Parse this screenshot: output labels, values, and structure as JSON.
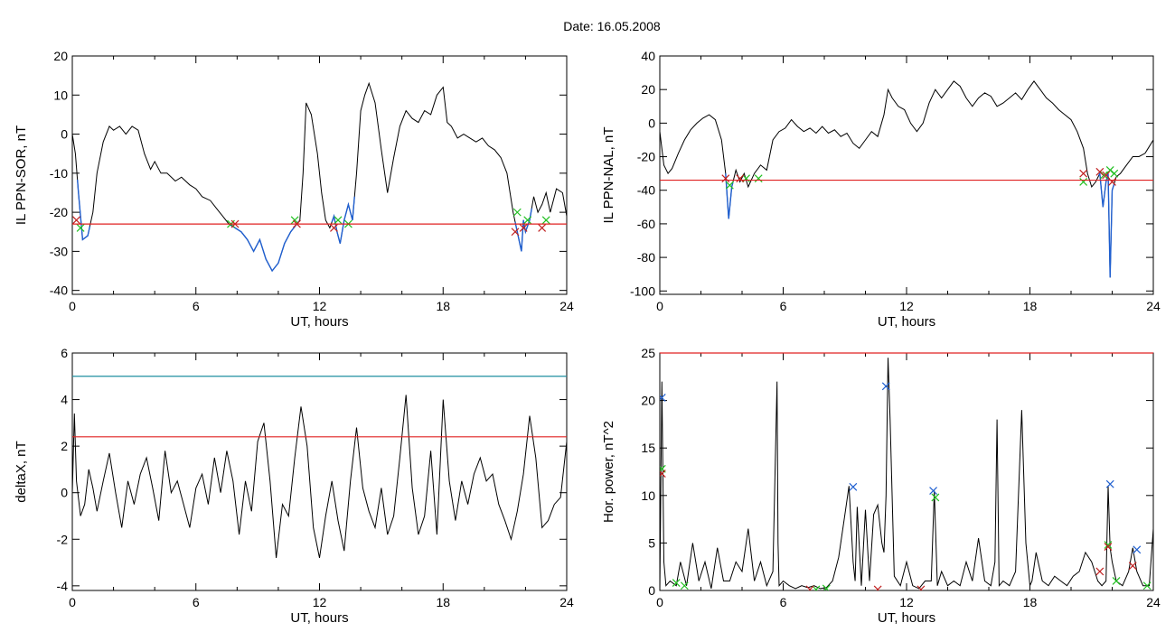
{
  "figure": {
    "title": "Date:  16.05.2008"
  },
  "chart_data": [
    {
      "id": "p1",
      "type": "line",
      "title": "",
      "xlabel": "UT, hours",
      "ylabel": "IL PPN-SOR, nT",
      "xlim": [
        0,
        24
      ],
      "ylim": [
        -41,
        20
      ],
      "xticks": [
        0,
        6,
        12,
        18,
        24
      ],
      "yticks": [
        -40,
        -30,
        -20,
        -10,
        0,
        10,
        20
      ],
      "colors": {
        "line": "#000000",
        "highlight": "#1f5fd0",
        "threshold": "#e02020",
        "start": "#20c020",
        "end": "#c02020"
      },
      "threshold": -23,
      "series": [
        {
          "x": [
            0,
            0.15,
            0.3,
            0.5,
            0.75,
            1.0,
            1.2,
            1.5,
            1.8,
            2.0,
            2.3,
            2.6,
            2.9,
            3.2,
            3.5,
            3.8,
            4.0,
            4.3,
            4.6,
            5.0,
            5.3,
            5.7,
            6.0,
            6.3,
            6.7,
            7.0,
            7.3,
            7.6,
            7.9,
            8.2,
            8.5,
            8.8,
            9.1,
            9.4,
            9.7,
            10.0,
            10.3,
            10.6,
            10.9,
            11.05,
            11.2,
            11.35,
            11.6,
            11.9,
            12.1,
            12.3,
            12.5,
            12.7,
            12.85,
            13.0,
            13.2,
            13.4,
            13.6,
            13.8,
            14.0,
            14.2,
            14.4,
            14.7,
            15.0,
            15.3,
            15.6,
            15.9,
            16.2,
            16.5,
            16.8,
            17.1,
            17.4,
            17.7,
            18.0,
            18.2,
            18.4,
            18.7,
            19.0,
            19.3,
            19.6,
            19.9,
            20.2,
            20.5,
            20.8,
            21.1,
            21.4,
            21.6,
            21.8,
            21.9,
            22.0,
            22.2,
            22.4,
            22.6,
            22.8,
            23.0,
            23.2,
            23.5,
            23.8,
            24.0
          ],
          "y": [
            0,
            -5,
            -15,
            -27,
            -26,
            -20,
            -10,
            -2,
            2,
            1,
            2,
            0,
            2,
            1,
            -5,
            -9,
            -7,
            -10,
            -10,
            -12,
            -11,
            -13,
            -14,
            -16,
            -17,
            -19,
            -21,
            -23,
            -24,
            -25,
            -27,
            -30,
            -27,
            -32,
            -35,
            -33,
            -28,
            -25,
            -23,
            -22,
            -10,
            8,
            5,
            -5,
            -15,
            -22,
            -24,
            -21,
            -25,
            -28,
            -22,
            -18,
            -22,
            -10,
            6,
            10,
            13,
            8,
            -4,
            -15,
            -6,
            2,
            6,
            4,
            3,
            6,
            5,
            10,
            12,
            3,
            2,
            -1,
            0,
            -1,
            -2,
            -1,
            -3,
            -4,
            -6,
            -10,
            -20,
            -25,
            -30,
            -22,
            -25,
            -22,
            -16,
            -20,
            -18,
            -15,
            -20,
            -14,
            -15,
            -21
          ]
        }
      ],
      "highlight_ranges": [
        [
          0.25,
          0.85
        ],
        [
          7.7,
          11.0
        ],
        [
          12.6,
          13.7
        ],
        [
          21.5,
          22.3
        ]
      ],
      "start_markers": [
        [
          0.4,
          -24
        ],
        [
          7.7,
          -23
        ],
        [
          10.8,
          -22
        ],
        [
          12.9,
          -22
        ],
        [
          13.4,
          -23
        ],
        [
          21.6,
          -20
        ],
        [
          22.1,
          -22
        ],
        [
          23.0,
          -22
        ]
      ],
      "end_markers": [
        [
          0.2,
          -22
        ],
        [
          7.9,
          -23
        ],
        [
          10.9,
          -23
        ],
        [
          12.7,
          -24
        ],
        [
          21.5,
          -25
        ],
        [
          21.9,
          -24
        ],
        [
          22.8,
          -24
        ]
      ]
    },
    {
      "id": "p2",
      "type": "line",
      "title": "",
      "xlabel": "UT, hours",
      "ylabel": "IL PPN-NAL, nT",
      "xlim": [
        0,
        24
      ],
      "ylim": [
        -102,
        40
      ],
      "xticks": [
        0,
        6,
        12,
        18,
        24
      ],
      "yticks": [
        -100,
        -80,
        -60,
        -40,
        -20,
        0,
        20,
        40
      ],
      "colors": {
        "line": "#000000",
        "highlight": "#1f5fd0",
        "threshold": "#e02020",
        "start": "#20c020",
        "end": "#c02020"
      },
      "threshold": -34,
      "series": [
        {
          "x": [
            0,
            0.2,
            0.4,
            0.6,
            0.9,
            1.2,
            1.5,
            1.8,
            2.1,
            2.4,
            2.7,
            3.0,
            3.2,
            3.35,
            3.5,
            3.7,
            3.9,
            4.1,
            4.3,
            4.6,
            4.9,
            5.2,
            5.5,
            5.8,
            6.1,
            6.4,
            6.7,
            7.0,
            7.3,
            7.6,
            7.9,
            8.2,
            8.5,
            8.8,
            9.1,
            9.4,
            9.7,
            10.0,
            10.3,
            10.6,
            10.9,
            11.1,
            11.3,
            11.6,
            11.9,
            12.2,
            12.5,
            12.8,
            13.1,
            13.4,
            13.7,
            14.0,
            14.3,
            14.6,
            14.9,
            15.2,
            15.5,
            15.8,
            16.1,
            16.4,
            16.7,
            17.0,
            17.3,
            17.6,
            17.9,
            18.2,
            18.5,
            18.8,
            19.1,
            19.4,
            19.7,
            20.0,
            20.3,
            20.6,
            20.8,
            21.0,
            21.2,
            21.4,
            21.55,
            21.7,
            21.8,
            21.9,
            22.0,
            22.2,
            22.4,
            22.7,
            23.0,
            23.3,
            23.6,
            24.0
          ],
          "y": [
            -5,
            -25,
            -30,
            -27,
            -18,
            -10,
            -4,
            0,
            3,
            5,
            2,
            -10,
            -30,
            -57,
            -38,
            -28,
            -35,
            -30,
            -38,
            -30,
            -25,
            -28,
            -10,
            -5,
            -3,
            2,
            -2,
            -5,
            -3,
            -6,
            -2,
            -6,
            -4,
            -8,
            -6,
            -12,
            -15,
            -10,
            -5,
            -8,
            5,
            20,
            15,
            10,
            8,
            0,
            -5,
            0,
            12,
            20,
            15,
            20,
            25,
            22,
            15,
            10,
            15,
            18,
            16,
            10,
            12,
            15,
            18,
            14,
            20,
            25,
            20,
            15,
            12,
            8,
            5,
            2,
            -5,
            -15,
            -30,
            -38,
            -35,
            -30,
            -50,
            -35,
            -30,
            -92,
            -40,
            -32,
            -30,
            -25,
            -20,
            -20,
            -18,
            -10
          ]
        }
      ],
      "highlight_ranges": [
        [
          3.2,
          3.55
        ],
        [
          21.35,
          22.1
        ]
      ],
      "start_markers": [
        [
          3.4,
          -37
        ],
        [
          4.2,
          -33
        ],
        [
          4.8,
          -33
        ],
        [
          20.6,
          -35
        ],
        [
          21.6,
          -31
        ],
        [
          21.9,
          -28
        ],
        [
          22.1,
          -30
        ]
      ],
      "end_markers": [
        [
          3.2,
          -33
        ],
        [
          3.9,
          -33
        ],
        [
          20.6,
          -30
        ],
        [
          21.4,
          -29
        ],
        [
          21.7,
          -31
        ],
        [
          22.0,
          -35
        ]
      ]
    },
    {
      "id": "p3",
      "type": "line",
      "title": "",
      "xlabel": "UT, hours",
      "ylabel": "deltaX, nT",
      "xlim": [
        0,
        24
      ],
      "ylim": [
        -4.2,
        6
      ],
      "xticks": [
        0,
        6,
        12,
        18,
        24
      ],
      "yticks": [
        -4,
        -2,
        0,
        2,
        4,
        6
      ],
      "colors": {
        "line": "#000000",
        "threshold_upper": "#1f8fa0",
        "threshold_lower": "#e02020"
      },
      "threshold_upper": 5,
      "threshold_lower": 2.4,
      "series": [
        {
          "x": [
            0,
            0.1,
            0.2,
            0.4,
            0.6,
            0.8,
            1.0,
            1.2,
            1.5,
            1.8,
            2.1,
            2.4,
            2.7,
            3.0,
            3.3,
            3.6,
            3.9,
            4.2,
            4.5,
            4.8,
            5.1,
            5.4,
            5.7,
            6.0,
            6.3,
            6.6,
            6.9,
            7.2,
            7.5,
            7.8,
            8.1,
            8.4,
            8.7,
            9.0,
            9.3,
            9.6,
            9.9,
            10.2,
            10.5,
            10.8,
            11.1,
            11.4,
            11.7,
            12.0,
            12.3,
            12.6,
            12.9,
            13.2,
            13.5,
            13.8,
            14.1,
            14.4,
            14.7,
            15.0,
            15.3,
            15.6,
            15.9,
            16.2,
            16.5,
            16.8,
            17.1,
            17.4,
            17.7,
            18.0,
            18.3,
            18.6,
            18.9,
            19.2,
            19.5,
            19.8,
            20.1,
            20.4,
            20.7,
            21.0,
            21.3,
            21.6,
            21.9,
            22.2,
            22.5,
            22.8,
            23.1,
            23.4,
            23.7,
            24.0
          ],
          "y": [
            0,
            3.4,
            0.5,
            -1,
            -0.5,
            1,
            0.2,
            -0.8,
            0.5,
            1.7,
            0,
            -1.5,
            0.5,
            -0.5,
            0.8,
            1.5,
            0.2,
            -1.2,
            1.8,
            0,
            0.5,
            -0.5,
            -1.5,
            0.2,
            0.8,
            -0.5,
            1.5,
            0,
            1.8,
            0.5,
            -1.8,
            0.5,
            -0.8,
            2.2,
            3,
            0.5,
            -2.8,
            -0.5,
            -1,
            1.5,
            3.7,
            2,
            -1.5,
            -2.8,
            -1,
            0.5,
            -1.2,
            -2.5,
            0.5,
            2.8,
            0.2,
            -0.8,
            -1.5,
            0.2,
            -1.8,
            -1,
            1.5,
            4.2,
            0.2,
            -1.8,
            -1,
            1.8,
            -1.8,
            4,
            0.5,
            -1.2,
            0.5,
            -0.5,
            0.8,
            1.5,
            0.5,
            0.8,
            -0.5,
            -1.2,
            -2,
            -0.8,
            0.8,
            3.3,
            1.5,
            -1.5,
            -1.2,
            -0.5,
            -0.2,
            2.2
          ]
        }
      ]
    },
    {
      "id": "p4",
      "type": "line",
      "title": "",
      "xlabel": "UT, hours",
      "ylabel": "Hor. power, nT^2",
      "xlim": [
        0,
        24
      ],
      "ylim": [
        0,
        25
      ],
      "xticks": [
        0,
        6,
        12,
        18,
        24
      ],
      "yticks": [
        0,
        5,
        10,
        15,
        20,
        25
      ],
      "colors": {
        "line": "#000000",
        "threshold": "#e02020",
        "peak": "#1f5fd0",
        "start": "#20c020",
        "end": "#c02020"
      },
      "threshold": 25,
      "series": [
        {
          "x": [
            0,
            0.1,
            0.2,
            0.3,
            0.5,
            0.8,
            1.0,
            1.3,
            1.6,
            1.9,
            2.2,
            2.5,
            2.8,
            3.1,
            3.4,
            3.7,
            4.0,
            4.3,
            4.6,
            4.9,
            5.2,
            5.5,
            5.7,
            5.75,
            5.8,
            6.0,
            6.3,
            6.6,
            6.9,
            7.2,
            7.5,
            7.8,
            8.1,
            8.4,
            8.7,
            9.0,
            9.2,
            9.4,
            9.5,
            9.6,
            9.8,
            10.0,
            10.2,
            10.4,
            10.6,
            10.8,
            10.9,
            11.0,
            11.1,
            11.2,
            11.4,
            11.7,
            12.0,
            12.3,
            12.6,
            12.9,
            13.2,
            13.35,
            13.5,
            13.7,
            14.0,
            14.3,
            14.6,
            14.9,
            15.2,
            15.5,
            15.8,
            16.1,
            16.3,
            16.4,
            16.5,
            16.7,
            17.0,
            17.3,
            17.6,
            17.8,
            18.0,
            18.1,
            18.3,
            18.6,
            18.9,
            19.2,
            19.5,
            19.8,
            20.1,
            20.4,
            20.7,
            21.0,
            21.3,
            21.5,
            21.7,
            21.8,
            21.9,
            22.0,
            22.2,
            22.5,
            22.8,
            23.0,
            23.2,
            23.5,
            23.8,
            24.0
          ],
          "y": [
            0,
            22,
            3,
            0.5,
            1,
            0.5,
            3,
            0.5,
            5,
            1,
            3,
            0.2,
            4.5,
            1,
            1,
            3,
            2,
            6.5,
            1,
            3,
            0.5,
            2,
            22,
            5,
            0.5,
            1,
            0.5,
            0.2,
            0.5,
            0.3,
            0.5,
            0.2,
            0.3,
            1,
            3.5,
            8,
            11,
            3,
            1,
            8.8,
            0.5,
            8.5,
            1,
            8,
            9,
            5,
            4,
            10,
            24.5,
            18,
            1.5,
            0.5,
            3,
            0.5,
            0.2,
            1,
            1,
            10.5,
            0.5,
            2,
            0.5,
            1,
            0.5,
            3,
            1,
            5.5,
            1,
            0.5,
            3,
            18,
            0.5,
            1,
            0.5,
            2,
            19,
            5,
            0.5,
            1,
            4,
            1,
            0.5,
            1.5,
            1,
            0.5,
            1.5,
            2,
            4,
            3,
            1,
            0.5,
            1,
            11,
            4.5,
            3,
            1,
            0.5,
            2,
            4.5,
            2,
            0.5,
            0.5,
            6.5
          ]
        }
      ],
      "peak_markers": [
        [
          0.1,
          20.3
        ],
        [
          9.4,
          10.9
        ],
        [
          11.0,
          21.5
        ],
        [
          13.3,
          10.5
        ],
        [
          21.9,
          11.2
        ],
        [
          23.2,
          4.3
        ]
      ],
      "start_markers": [
        [
          0.1,
          12.8
        ],
        [
          0.8,
          0.8
        ],
        [
          1.2,
          0.5
        ],
        [
          7.6,
          0.1
        ],
        [
          8.1,
          0.2
        ],
        [
          13.4,
          9.8
        ],
        [
          21.8,
          4.8
        ],
        [
          22.2,
          1.0
        ],
        [
          23.7,
          0.5
        ]
      ],
      "end_markers": [
        [
          0.1,
          12.3
        ],
        [
          7.3,
          0.1
        ],
        [
          10.6,
          0.1
        ],
        [
          12.7,
          0.1
        ],
        [
          21.4,
          2.0
        ],
        [
          21.8,
          4.6
        ],
        [
          23.0,
          2.6
        ]
      ]
    }
  ]
}
